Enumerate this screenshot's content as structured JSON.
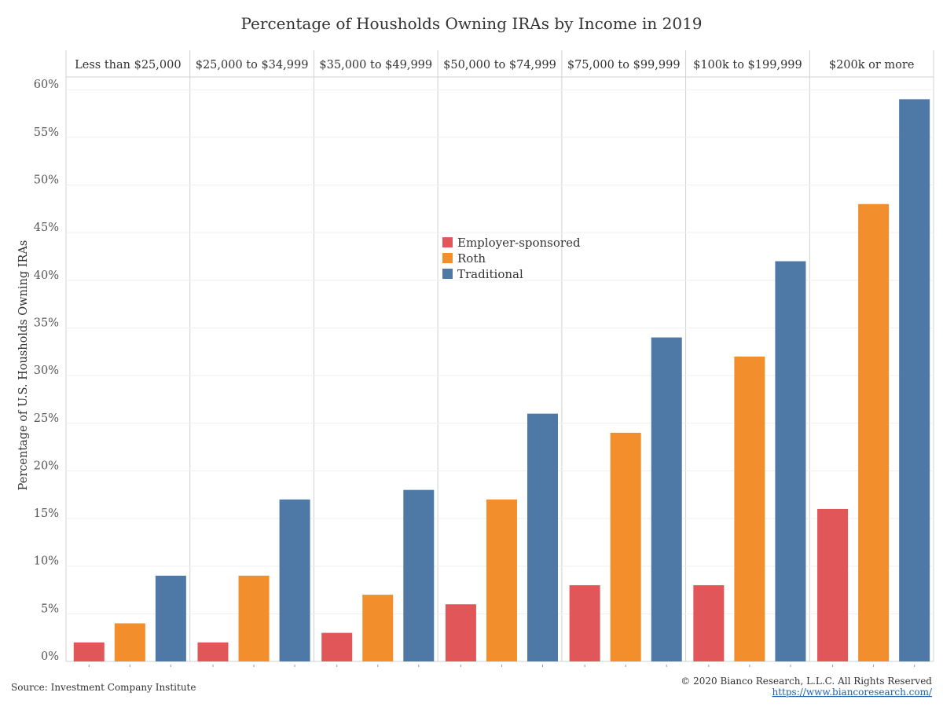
{
  "chart_data": {
    "type": "bar",
    "title": "Percentage of Housholds Owning IRAs by Income in 2019",
    "ylabel": "Percentage of U.S. Housholds Owning IRAs",
    "xlabel": "",
    "ylim": [
      0,
      62
    ],
    "yticks": [
      "0%",
      "5%",
      "10%",
      "15%",
      "20%",
      "25%",
      "30%",
      "35%",
      "40%",
      "45%",
      "50%",
      "55%",
      "60%"
    ],
    "ytick_values": [
      0,
      5,
      10,
      15,
      20,
      25,
      30,
      35,
      40,
      45,
      50,
      55,
      60
    ],
    "categories": [
      "Less than $25,000",
      "$25,000 to $34,999",
      "$35,000 to $49,999",
      "$50,000 to $74,999",
      "$75,000 to $99,999",
      "$100k to $199,999",
      "$200k or more"
    ],
    "series": [
      {
        "name": "Employer-sponsored",
        "color": "#e15759",
        "values": [
          2,
          2,
          3,
          6,
          8,
          8,
          16
        ]
      },
      {
        "name": "Roth",
        "color": "#f28e2b",
        "values": [
          4,
          9,
          7,
          17,
          24,
          32,
          48
        ]
      },
      {
        "name": "Traditional",
        "color": "#4e79a7",
        "values": [
          9,
          17,
          18,
          26,
          34,
          42,
          59
        ]
      }
    ],
    "legend_position": "center",
    "grid": true
  },
  "footer": {
    "source": "Source: Investment Company Institute",
    "copyright": "© 2020 Bianco Research, L.L.C. All Rights Reserved",
    "url": "https://www.biancoresearch.com/"
  }
}
